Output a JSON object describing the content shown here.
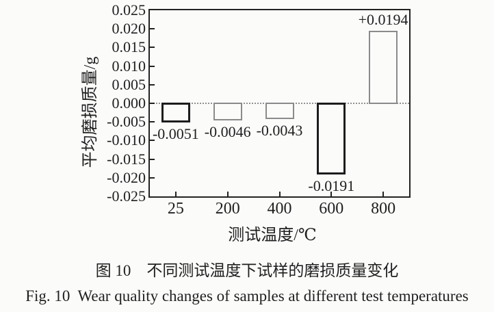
{
  "figure": {
    "caption_cn": "图 10　不同测试温度下试样的磨损质量变化",
    "caption_en": "Fig. 10  Wear quality changes of samples at different test temperatures"
  },
  "chart_data": {
    "type": "bar",
    "categories": [
      "25",
      "200",
      "400",
      "600",
      "800"
    ],
    "values": [
      -0.0051,
      -0.0046,
      -0.0043,
      -0.0191,
      0.0194
    ],
    "bar_value_labels": [
      "-0.0051",
      "-0.0046",
      "-0.0043",
      "-0.0191",
      "+0.0194"
    ],
    "bar_styles": [
      "emphasis",
      "normal",
      "normal",
      "emphasis",
      "normal"
    ],
    "xlabel": "测试温度/℃",
    "ylabel": "平均磨损质量/g",
    "ylim": [
      -0.025,
      0.025
    ],
    "ytick_interval": 0.005,
    "yticks": [
      "0.025",
      "0.020",
      "0.015",
      "0.010",
      "0.005",
      "0.000",
      "-0.005",
      "-0.010",
      "-0.015",
      "-0.020",
      "-0.025"
    ],
    "grid": false,
    "legend": "none",
    "bar_fill": "none",
    "colors": {
      "background": "#fbfbfa",
      "axis": "#222222",
      "text": "#1f1f1f",
      "bar_emphasis_border": "#1c1c1c",
      "bar_normal_border": "#8a8a8a",
      "zero_line": "#8f8f8f"
    }
  }
}
